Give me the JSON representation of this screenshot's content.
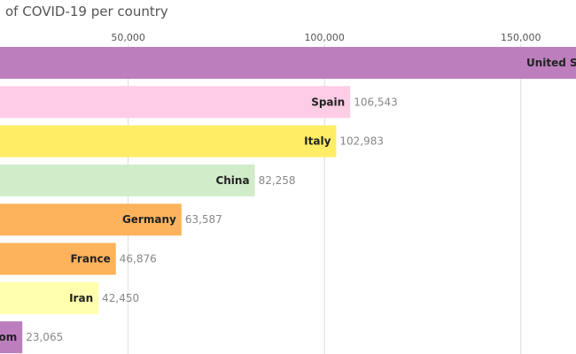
{
  "chart_data": {
    "type": "bar",
    "orientation": "horizontal",
    "title": "of COVID-19 per country",
    "x_ticks": [
      50000,
      100000,
      150000
    ],
    "x_tick_labels": [
      "50,000",
      "100,000",
      "150,000"
    ],
    "grid": true,
    "categories": [
      "United St",
      "Spain",
      "Italy",
      "China",
      "Germany",
      "France",
      "Iran",
      "om"
    ],
    "values": [
      190000,
      106543,
      102983,
      82258,
      63587,
      46876,
      42450,
      23065
    ],
    "value_labels": [
      "",
      "106,543",
      "102,983",
      "82,258",
      "63,587",
      "46,876",
      "42,450",
      "23,065"
    ],
    "colors": [
      "#bd7ebe",
      "#fdcce5",
      "#ffee65",
      "#d0ecc9",
      "#fdb35c",
      "#fdb35c",
      "#ffffad",
      "#bd7ebe"
    ]
  }
}
